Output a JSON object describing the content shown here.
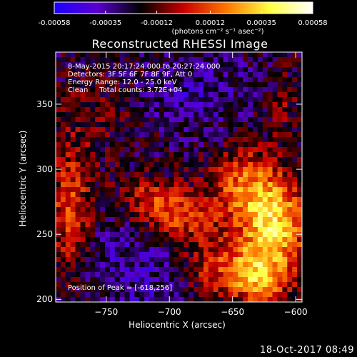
{
  "colorbar": {
    "ticks": [
      "-0.00058",
      "-0.00035",
      "-0.00012",
      "0.00012",
      "0.00035",
      "0.00058"
    ],
    "tick_values": [
      -0.00058,
      -0.00035,
      -0.00012,
      0.00012,
      0.00035,
      0.00058
    ],
    "units": "(photons cm⁻² s⁻¹ asec⁻²)",
    "colors": [
      "#1a00ff",
      "#5a00d0",
      "#000000",
      "#c80000",
      "#ff7700",
      "#ffff40",
      "#ffffff"
    ]
  },
  "plot": {
    "title": "Reconstructed RHESSI Image",
    "annotations": {
      "time": "8-May-2015 20:17:24.000 to 20:27:24.000",
      "detectors": "Detectors: 3F 5F 6F 7F 8F 9F, Att 0",
      "energy": "Energy Range: 12.0 - 25.0 keV",
      "clean": "Clean     Total counts: 3.72E+04",
      "peak": "Position of Peak = [-618,256]"
    },
    "xlabel": "Heliocentric X (arcsec)",
    "ylabel": "Heliocentric Y (arcsec)",
    "footer_date": "18-Oct-2017 08:49"
  },
  "chart_data": {
    "type": "heatmap",
    "title": "Reconstructed RHESSI Image",
    "xlabel": "Heliocentric X (arcsec)",
    "ylabel": "Heliocentric Y (arcsec)",
    "xlim": [
      -790,
      -595
    ],
    "ylim": [
      198,
      390
    ],
    "x_ticks": [
      -750,
      -700,
      -650,
      -600
    ],
    "x_tick_labels": [
      "−750",
      "−700",
      "−650",
      "−600"
    ],
    "y_ticks": [
      200,
      250,
      300,
      350
    ],
    "y_tick_labels": [
      "200",
      "250",
      "300",
      "350"
    ],
    "color_range": [
      -0.00058,
      0.00058
    ],
    "peak": [
      -618,
      256
    ],
    "sources": [
      {
        "x": -618,
        "y": 256,
        "amp": 0.00058,
        "sx": 18,
        "sy": 22
      },
      {
        "x": -640,
        "y": 290,
        "amp": 0.00035,
        "sx": 20,
        "sy": 18
      },
      {
        "x": -690,
        "y": 262,
        "amp": 0.0003,
        "sx": 22,
        "sy": 14
      },
      {
        "x": -660,
        "y": 225,
        "amp": 0.0003,
        "sx": 22,
        "sy": 16
      },
      {
        "x": -715,
        "y": 278,
        "amp": 0.00025,
        "sx": 16,
        "sy": 12
      },
      {
        "x": -628,
        "y": 215,
        "amp": 0.0004,
        "sx": 16,
        "sy": 14
      },
      {
        "x": -778,
        "y": 268,
        "amp": 0.0003,
        "sx": 12,
        "sy": 35
      },
      {
        "x": -760,
        "y": 340,
        "amp": 8e-05,
        "sx": 30,
        "sy": 25
      },
      {
        "x": -610,
        "y": 345,
        "amp": 0.00012,
        "sx": 10,
        "sy": 18
      },
      {
        "x": -720,
        "y": 225,
        "amp": -0.00015,
        "sx": 35,
        "sy": 30
      },
      {
        "x": -680,
        "y": 360,
        "amp": -0.00012,
        "sx": 30,
        "sy": 25
      }
    ]
  }
}
